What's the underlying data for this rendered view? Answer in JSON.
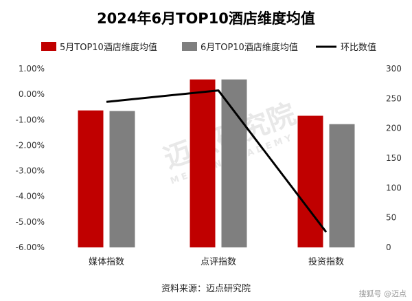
{
  "chart_data": {
    "type": "bar",
    "title": "2024年6月TOP10酒店维度均值",
    "categories": [
      "媒体指数",
      "点评指数",
      "投资指数"
    ],
    "series": [
      {
        "name": "5月TOP10酒店维度均值",
        "kind": "bar",
        "axis": "right",
        "values": [
          230,
          282,
          221
        ]
      },
      {
        "name": "6月TOP10酒店维度均值",
        "kind": "bar",
        "axis": "right",
        "values": [
          229,
          282,
          207
        ]
      },
      {
        "name": "环比数值",
        "kind": "line",
        "axis": "left",
        "values": [
          -0.3,
          0.15,
          -5.4
        ]
      }
    ],
    "y_left": {
      "range": [
        -6,
        1
      ],
      "ticks": [
        1,
        0,
        -1,
        -2,
        -3,
        -4,
        -5,
        -6
      ],
      "tick_labels": [
        "1.00%",
        "0.00%",
        "-1.00%",
        "-2.00%",
        "-3.00%",
        "-4.00%",
        "-5.00%",
        "-6.00%"
      ]
    },
    "y_right": {
      "range": [
        0,
        300
      ],
      "ticks": [
        300,
        250,
        200,
        150,
        100,
        50,
        0
      ],
      "tick_labels": [
        "300",
        "250",
        "200",
        "150",
        "100",
        "50",
        "0"
      ]
    },
    "grid": false,
    "legend": "top",
    "colors": {
      "may": "#c00000",
      "june": "#7f7f7f",
      "ratio": "#000000"
    }
  },
  "source_text": "资料来源：迈点研究院",
  "watermark": {
    "brand": "迈点研究院",
    "sub": "MEADIN ACADEMY"
  },
  "footer_logo": "搜狐号 @迈点"
}
